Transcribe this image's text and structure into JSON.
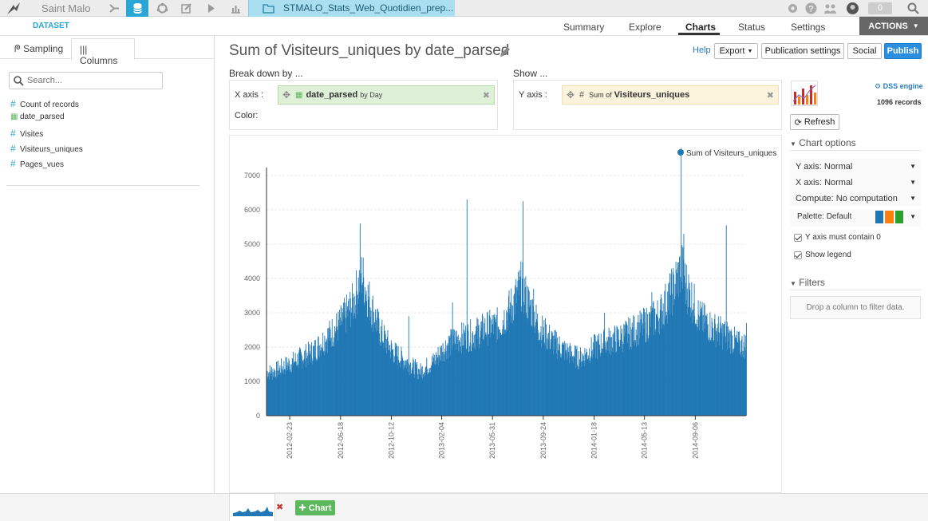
{
  "topnav": {
    "project": "Saint Malo",
    "dataset_tab": "STMALO_Stats_Web_Quotidien_prep...",
    "notifications": "0",
    "icons": [
      "flow-icon",
      "datasets-icon",
      "recipes-icon",
      "notebooks-icon",
      "jobs-icon",
      "dashboards-icon"
    ]
  },
  "subnav": {
    "section": "DATASET",
    "tabs": [
      "Summary",
      "Explore",
      "Charts",
      "Status",
      "Settings"
    ],
    "active_tab": "Charts",
    "actions": "ACTIONS"
  },
  "left": {
    "tabs": [
      "Sampling",
      "Columns"
    ],
    "search_placeholder": "Search...",
    "columns": [
      {
        "icon": "#",
        "name": "Count of records"
      },
      {
        "icon": "calendar",
        "name": "date_parsed"
      },
      {
        "icon": "#",
        "name": "Visites"
      },
      {
        "icon": "#",
        "name": "Visiteurs_uniques"
      },
      {
        "icon": "#",
        "name": "Pages_vues"
      }
    ]
  },
  "main": {
    "title": "Sum of Visiteurs_uniques by date_parsed",
    "help": "Help",
    "export": "Export",
    "publication_settings": "Publication settings",
    "social": "Social",
    "publish": "Publish",
    "breakdown_label": "Break down by ...",
    "show_label": "Show ...",
    "x_axis_label": "X axis :",
    "x_field": "date_parsed",
    "x_field_suffix": "by Day",
    "color_label": "Color:",
    "y_axis_label": "Y axis :",
    "y_prefix": "Sum of",
    "y_field": "Visiteurs_uniques"
  },
  "right": {
    "engine": "DSS engine",
    "records": "1096 records",
    "refresh": "Refresh",
    "chart_options": "Chart options",
    "y_axis_key": "Y axis:",
    "y_axis_val": "Normal",
    "x_axis_key": "X axis:",
    "x_axis_val": "Normal",
    "compute_key": "Compute:",
    "compute_val": "No computation",
    "palette_key": "Palette:",
    "palette_val": "Default",
    "palette_colors": [
      "#1f77b4",
      "#ff7f0e",
      "#2ca02c"
    ],
    "y_contains_zero": "Y axis must contain 0",
    "show_legend": "Show legend",
    "filters": "Filters",
    "filters_hint": "Drop a column to filter data."
  },
  "bottom": {
    "add_chart": "Chart"
  },
  "chart_data": {
    "type": "bar",
    "legend": "Sum of Visiteurs_uniques",
    "legend_position": "top-right",
    "color": "#2178b4",
    "ylim": [
      0,
      7000
    ],
    "yticks": [
      0,
      1000,
      2000,
      3000,
      4000,
      5000,
      6000,
      7000
    ],
    "xlabels": [
      "2012-02-23",
      "2012-06-18",
      "2012-10-12",
      "2013-02-04",
      "2013-05-31",
      "2013-09-24",
      "2014-01-18",
      "2014-05-13",
      "2014-09-06"
    ],
    "x_start": "2012-01-01",
    "x_end": "2014-12-31",
    "grid": true,
    "series": [
      {
        "date": "2012-01-15",
        "value": 1300
      },
      {
        "date": "2012-02-15",
        "value": 1500
      },
      {
        "date": "2012-03-15",
        "value": 1700
      },
      {
        "date": "2012-04-15",
        "value": 1900
      },
      {
        "date": "2012-05-15",
        "value": 2300
      },
      {
        "date": "2012-06-15",
        "value": 2700
      },
      {
        "date": "2012-07-15",
        "value": 3300
      },
      {
        "date": "2012-08-05",
        "value": 4200
      },
      {
        "date": "2012-08-15",
        "value": 3700
      },
      {
        "date": "2012-09-15",
        "value": 2500
      },
      {
        "date": "2012-10-15",
        "value": 1900
      },
      {
        "date": "2012-11-15",
        "value": 1600
      },
      {
        "date": "2012-12-15",
        "value": 1300
      },
      {
        "date": "2013-01-15",
        "value": 1600
      },
      {
        "date": "2013-02-15",
        "value": 2100
      },
      {
        "date": "2013-03-15",
        "value": 2300
      },
      {
        "date": "2013-04-15",
        "value": 2400
      },
      {
        "date": "2013-05-15",
        "value": 2600
      },
      {
        "date": "2013-06-15",
        "value": 2700
      },
      {
        "date": "2013-07-15",
        "value": 3300
      },
      {
        "date": "2013-08-05",
        "value": 3900
      },
      {
        "date": "2013-08-15",
        "value": 3500
      },
      {
        "date": "2013-09-15",
        "value": 2600
      },
      {
        "date": "2013-10-15",
        "value": 2200
      },
      {
        "date": "2013-11-15",
        "value": 1900
      },
      {
        "date": "2013-12-15",
        "value": 1700
      },
      {
        "date": "2014-01-15",
        "value": 2000
      },
      {
        "date": "2014-02-15",
        "value": 2200
      },
      {
        "date": "2014-03-15",
        "value": 2300
      },
      {
        "date": "2014-04-15",
        "value": 2500
      },
      {
        "date": "2014-05-15",
        "value": 2700
      },
      {
        "date": "2014-06-15",
        "value": 3000
      },
      {
        "date": "2014-07-15",
        "value": 3700
      },
      {
        "date": "2014-08-05",
        "value": 4400
      },
      {
        "date": "2014-08-15",
        "value": 3900
      },
      {
        "date": "2014-09-15",
        "value": 2900
      },
      {
        "date": "2014-10-15",
        "value": 2600
      },
      {
        "date": "2014-11-15",
        "value": 2400
      },
      {
        "date": "2014-12-15",
        "value": 2100
      }
    ],
    "spikes": [
      {
        "date": "2012-08-01",
        "value": 5600
      },
      {
        "date": "2012-11-20",
        "value": 2900
      },
      {
        "date": "2013-02-28",
        "value": 3300
      },
      {
        "date": "2013-04-02",
        "value": 6300
      },
      {
        "date": "2013-08-08",
        "value": 6250
      },
      {
        "date": "2013-09-01",
        "value": 3700
      },
      {
        "date": "2014-02-10",
        "value": 3000
      },
      {
        "date": "2014-05-29",
        "value": 3600
      },
      {
        "date": "2014-08-04",
        "value": 7800
      },
      {
        "date": "2014-08-10",
        "value": 5300
      },
      {
        "date": "2014-11-15",
        "value": 5550
      },
      {
        "date": "2014-12-31",
        "value": 2700
      }
    ]
  }
}
